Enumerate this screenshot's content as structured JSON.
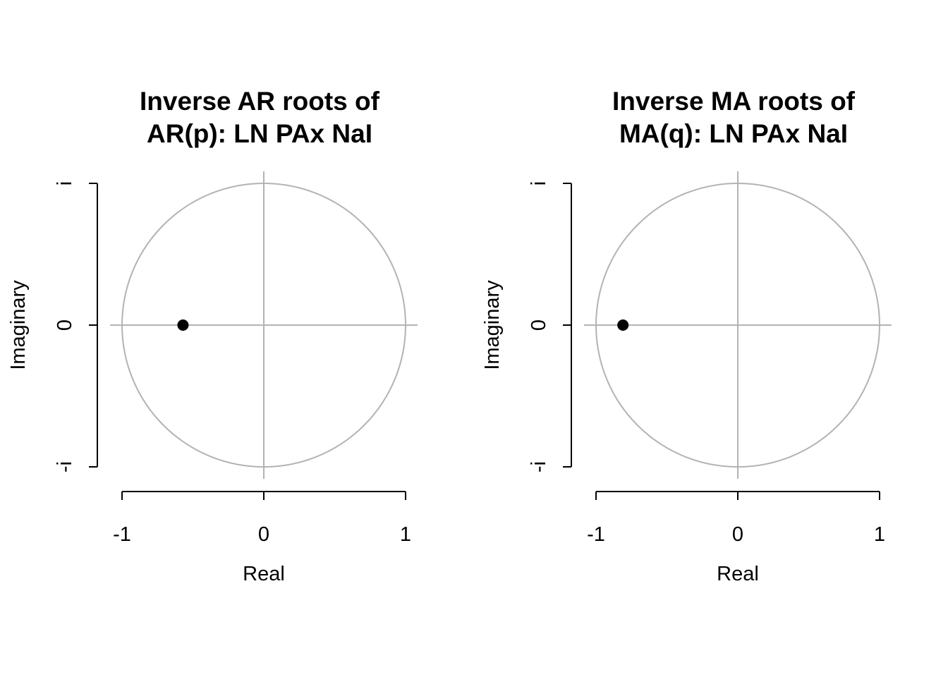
{
  "chart_data": [
    {
      "type": "scatter",
      "title": [
        "Inverse AR roots of",
        "AR(p): LN PAx NaI"
      ],
      "xlabel": "Real",
      "ylabel": "Imaginary",
      "xlim": [
        -1,
        1
      ],
      "ylim": [
        -1,
        1
      ],
      "x_ticks": [
        "-1",
        "0",
        "1"
      ],
      "y_ticks": [
        "-i",
        "0",
        "i"
      ],
      "unit_circle": true,
      "reference_lines": true,
      "guide_color": "#b3b3b3",
      "point_color": "#000000",
      "points": [
        {
          "x": -0.57,
          "y": 0
        }
      ]
    },
    {
      "type": "scatter",
      "title": [
        "Inverse MA roots of",
        "MA(q): LN PAx NaI"
      ],
      "xlabel": "Real",
      "ylabel": "Imaginary",
      "xlim": [
        -1,
        1
      ],
      "ylim": [
        -1,
        1
      ],
      "x_ticks": [
        "-1",
        "0",
        "1"
      ],
      "y_ticks": [
        "-i",
        "0",
        "i"
      ],
      "unit_circle": true,
      "reference_lines": true,
      "guide_color": "#b3b3b3",
      "point_color": "#000000",
      "points": [
        {
          "x": -0.81,
          "y": 0
        }
      ]
    }
  ]
}
